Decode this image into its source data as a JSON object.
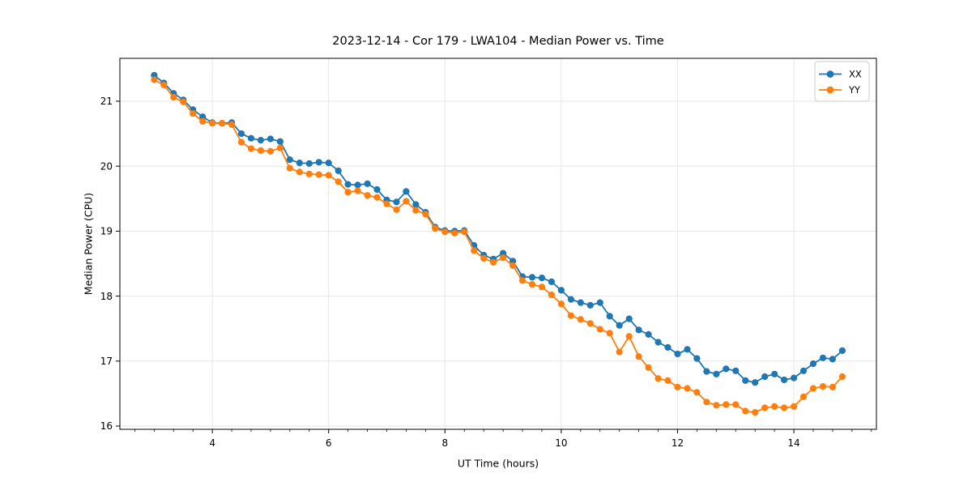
{
  "figure": {
    "background": "#ffffff"
  },
  "chart_data": {
    "type": "line",
    "title": "2023-12-14 - Cor 179 - LWA104 - Median Power vs. Time",
    "xlabel": "UT Time (hours)",
    "ylabel": "Median Power (CPU)",
    "xlim": [
      2.41,
      15.42
    ],
    "ylim": [
      15.95,
      21.66
    ],
    "xticks": [
      4,
      6,
      8,
      10,
      12,
      14
    ],
    "yticks": [
      16,
      17,
      18,
      19,
      20,
      21
    ],
    "x_minor_step": 0.33333,
    "grid": true,
    "grid_color": "#e7e7e7",
    "spine_color": "#000000",
    "legend": {
      "position": "upper right",
      "border_color": "#cccccc",
      "background": "#ffffff"
    },
    "x": [
      3.0,
      3.167,
      3.333,
      3.5,
      3.667,
      3.833,
      4.0,
      4.167,
      4.333,
      4.5,
      4.667,
      4.833,
      5.0,
      5.167,
      5.333,
      5.5,
      5.667,
      5.833,
      6.0,
      6.167,
      6.333,
      6.5,
      6.667,
      6.833,
      7.0,
      7.167,
      7.333,
      7.5,
      7.667,
      7.833,
      8.0,
      8.167,
      8.333,
      8.5,
      8.667,
      8.833,
      9.0,
      9.167,
      9.333,
      9.5,
      9.667,
      9.833,
      10.0,
      10.167,
      10.333,
      10.5,
      10.667,
      10.833,
      11.0,
      11.167,
      11.333,
      11.5,
      11.667,
      11.833,
      12.0,
      12.167,
      12.333,
      12.5,
      12.667,
      12.833,
      13.0,
      13.167,
      13.333,
      13.5,
      13.667,
      13.833,
      14.0,
      14.167,
      14.333,
      14.5,
      14.667,
      14.833
    ],
    "series": [
      {
        "name": "XX",
        "color": "#1f77b4",
        "marker": "circle",
        "values": [
          21.4,
          21.28,
          21.12,
          21.02,
          20.87,
          20.76,
          20.67,
          20.66,
          20.67,
          20.5,
          20.43,
          20.4,
          20.42,
          20.38,
          20.1,
          20.05,
          20.04,
          20.06,
          20.05,
          19.93,
          19.72,
          19.71,
          19.73,
          19.64,
          19.48,
          19.45,
          19.61,
          19.41,
          19.29,
          19.06,
          19.01,
          19.0,
          19.01,
          18.78,
          18.63,
          18.57,
          18.66,
          18.54,
          18.3,
          18.29,
          18.28,
          18.22,
          18.09,
          17.95,
          17.9,
          17.86,
          17.9,
          17.69,
          17.55,
          17.65,
          17.48,
          17.41,
          17.29,
          17.21,
          17.11,
          17.18,
          17.04,
          16.84,
          16.8,
          16.88,
          16.85,
          16.7,
          16.67,
          16.76,
          16.8,
          16.71,
          16.74,
          16.85,
          16.96,
          17.05,
          17.03,
          17.16
        ]
      },
      {
        "name": "YY",
        "color": "#ff7f0e",
        "marker": "circle",
        "values": [
          21.33,
          21.25,
          21.06,
          20.99,
          20.81,
          20.69,
          20.66,
          20.66,
          20.64,
          20.37,
          20.27,
          20.24,
          20.23,
          20.28,
          19.97,
          19.91,
          19.88,
          19.87,
          19.86,
          19.76,
          19.6,
          19.62,
          19.55,
          19.52,
          19.42,
          19.33,
          19.46,
          19.32,
          19.26,
          19.04,
          18.99,
          18.97,
          18.99,
          18.7,
          18.58,
          18.52,
          18.59,
          18.47,
          18.24,
          18.18,
          18.14,
          18.02,
          17.88,
          17.7,
          17.64,
          17.58,
          17.49,
          17.43,
          17.14,
          17.38,
          17.07,
          16.9,
          16.73,
          16.7,
          16.6,
          16.58,
          16.52,
          16.37,
          16.32,
          16.33,
          16.33,
          16.23,
          16.21,
          16.28,
          16.3,
          16.28,
          16.3,
          16.45,
          16.58,
          16.61,
          16.6,
          16.76
        ]
      }
    ]
  }
}
